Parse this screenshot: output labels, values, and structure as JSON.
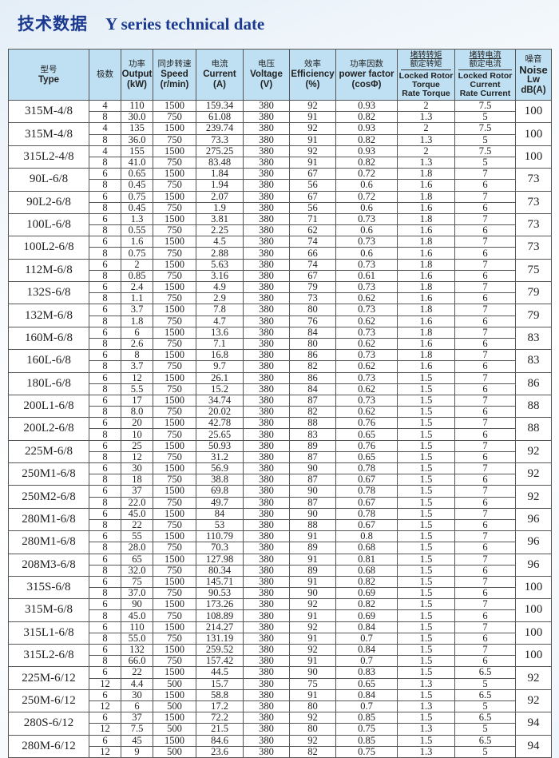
{
  "title": {
    "cn": "技术数据",
    "en": "Y series technical date"
  },
  "headers": {
    "type": {
      "cn": "型号",
      "en": "Type"
    },
    "poles": {
      "cn": "极数"
    },
    "output": {
      "cn": "功率",
      "en": "Output",
      "unit": "(kW)"
    },
    "speed": {
      "cn": "同步转速",
      "en": "Speed",
      "unit": "(r/min)"
    },
    "current": {
      "cn": "电流",
      "en": "Current",
      "unit": "(A)"
    },
    "voltage": {
      "cn": "电压",
      "en": "Voltage",
      "unit": "(V)"
    },
    "efficiency": {
      "cn": "效率",
      "en": "Efficiency",
      "unit": "(%)"
    },
    "pf": {
      "cn": "功率因数",
      "en": "power factor",
      "unit": "(cosΦ)"
    },
    "lrt": {
      "cn1": "堵转转矩",
      "cn2": "额定转矩",
      "en1": "Locked Rotor",
      "en2": "Torque",
      "en3": "Rate Torque"
    },
    "lrc": {
      "cn1": "堵转电流",
      "cn2": "额定电流",
      "en1": "Locked Rotor",
      "en2": "Current",
      "en3": "Rate Current"
    },
    "noise": {
      "cn": "噪音",
      "en1": "Noise",
      "en2": "Lw",
      "en3": "dB(A)"
    }
  },
  "groups": [
    {
      "type": "315M-4/8",
      "noise": "100",
      "rows": [
        [
          "4",
          "110",
          "1500",
          "159.34",
          "380",
          "92",
          "0.93",
          "2",
          "7.5"
        ],
        [
          "8",
          "30.0",
          "750",
          "61.08",
          "380",
          "91",
          "0.82",
          "1.3",
          "5"
        ]
      ]
    },
    {
      "type": "315M-4/8",
      "noise": "100",
      "rows": [
        [
          "4",
          "135",
          "1500",
          "239.74",
          "380",
          "92",
          "0.93",
          "2",
          "7.5"
        ],
        [
          "8",
          "36.0",
          "750",
          "73.3",
          "380",
          "91",
          "0.82",
          "1.3",
          "5"
        ]
      ]
    },
    {
      "type": "315L2-4/8",
      "noise": "100",
      "rows": [
        [
          "4",
          "155",
          "1500",
          "275.25",
          "380",
          "92",
          "0.93",
          "2",
          "7.5"
        ],
        [
          "8",
          "41.0",
          "750",
          "83.48",
          "380",
          "91",
          "0.82",
          "1.3",
          "5"
        ]
      ]
    },
    {
      "type": "90L-6/8",
      "noise": "73",
      "rows": [
        [
          "6",
          "0.65",
          "1500",
          "1.84",
          "380",
          "67",
          "0.72",
          "1.8",
          "7"
        ],
        [
          "8",
          "0.45",
          "750",
          "1.94",
          "380",
          "56",
          "0.6",
          "1.6",
          "6"
        ]
      ]
    },
    {
      "type": "90L2-6/8",
      "noise": "73",
      "rows": [
        [
          "6",
          "0.75",
          "1500",
          "2.07",
          "380",
          "67",
          "0.72",
          "1.8",
          "7"
        ],
        [
          "8",
          "0.45",
          "750",
          "1.9",
          "380",
          "56",
          "0.6",
          "1.6",
          "6"
        ]
      ]
    },
    {
      "type": "100L-6/8",
      "noise": "73",
      "rows": [
        [
          "6",
          "1.3",
          "1500",
          "3.81",
          "380",
          "71",
          "0.73",
          "1.8",
          "7"
        ],
        [
          "8",
          "0.55",
          "750",
          "2.25",
          "380",
          "62",
          "0.6",
          "1.6",
          "6"
        ]
      ]
    },
    {
      "type": "100L2-6/8",
      "noise": "73",
      "rows": [
        [
          "6",
          "1.6",
          "1500",
          "4.5",
          "380",
          "74",
          "0.73",
          "1.8",
          "7"
        ],
        [
          "8",
          "0.75",
          "750",
          "2.88",
          "380",
          "66",
          "0.6",
          "1.6",
          "6"
        ]
      ]
    },
    {
      "type": "112M-6/8",
      "noise": "75",
      "rows": [
        [
          "6",
          "2",
          "1500",
          "5.63",
          "380",
          "74",
          "0.73",
          "1.8",
          "7"
        ],
        [
          "8",
          "0.85",
          "750",
          "3.16",
          "380",
          "67",
          "0.61",
          "1.6",
          "6"
        ]
      ]
    },
    {
      "type": "132S-6/8",
      "noise": "79",
      "rows": [
        [
          "6",
          "2.4",
          "1500",
          "4.9",
          "380",
          "79",
          "0.73",
          "1.8",
          "7"
        ],
        [
          "8",
          "1.1",
          "750",
          "2.9",
          "380",
          "73",
          "0.62",
          "1.6",
          "6"
        ]
      ]
    },
    {
      "type": "132M-6/8",
      "noise": "79",
      "rows": [
        [
          "6",
          "3.7",
          "1500",
          "7.8",
          "380",
          "80",
          "0.73",
          "1.8",
          "7"
        ],
        [
          "8",
          "1.8",
          "750",
          "4.7",
          "380",
          "76",
          "0.62",
          "1.6",
          "6"
        ]
      ]
    },
    {
      "type": "160M-6/8",
      "noise": "83",
      "rows": [
        [
          "6",
          "6",
          "1500",
          "13.6",
          "380",
          "84",
          "0.73",
          "1.8",
          "7"
        ],
        [
          "8",
          "2.6",
          "750",
          "7.1",
          "380",
          "80",
          "0.62",
          "1.6",
          "6"
        ]
      ]
    },
    {
      "type": "160L-6/8",
      "noise": "83",
      "rows": [
        [
          "6",
          "8",
          "1500",
          "16.8",
          "380",
          "86",
          "0.73",
          "1.8",
          "7"
        ],
        [
          "8",
          "3.7",
          "750",
          "9.7",
          "380",
          "82",
          "0.62",
          "1.6",
          "6"
        ]
      ]
    },
    {
      "type": "180L-6/8",
      "noise": "86",
      "rows": [
        [
          "6",
          "12",
          "1500",
          "26.1",
          "380",
          "86",
          "0.73",
          "1.5",
          "7"
        ],
        [
          "8",
          "5.5",
          "750",
          "15.2",
          "380",
          "84",
          "0.62",
          "1.5",
          "6"
        ]
      ]
    },
    {
      "type": "200L1-6/8",
      "noise": "88",
      "rows": [
        [
          "6",
          "17",
          "1500",
          "34.74",
          "380",
          "87",
          "0.73",
          "1.5",
          "7"
        ],
        [
          "8",
          "8.0",
          "750",
          "20.02",
          "380",
          "82",
          "0.62",
          "1.5",
          "6"
        ]
      ]
    },
    {
      "type": "200L2-6/8",
      "noise": "88",
      "rows": [
        [
          "6",
          "20",
          "1500",
          "42.78",
          "380",
          "88",
          "0.76",
          "1.5",
          "7"
        ],
        [
          "8",
          "10",
          "750",
          "25.65",
          "380",
          "83",
          "0.65",
          "1.5",
          "6"
        ]
      ]
    },
    {
      "type": "225M-6/8",
      "noise": "92",
      "rows": [
        [
          "6",
          "25",
          "1500",
          "50.93",
          "380",
          "89",
          "0.76",
          "1.5",
          "7"
        ],
        [
          "8",
          "12",
          "750",
          "31.2",
          "380",
          "87",
          "0.65",
          "1.5",
          "6"
        ]
      ]
    },
    {
      "type": "250M1-6/8",
      "noise": "92",
      "rows": [
        [
          "6",
          "30",
          "1500",
          "56.9",
          "380",
          "90",
          "0.78",
          "1.5",
          "7"
        ],
        [
          "8",
          "18",
          "750",
          "38.8",
          "380",
          "87",
          "0.67",
          "1.5",
          "6"
        ]
      ]
    },
    {
      "type": "250M2-6/8",
      "noise": "92",
      "rows": [
        [
          "6",
          "37",
          "1500",
          "69.8",
          "380",
          "90",
          "0.78",
          "1.5",
          "7"
        ],
        [
          "8",
          "22.0",
          "750",
          "49.7",
          "380",
          "87",
          "0.67",
          "1.5",
          "6"
        ]
      ]
    },
    {
      "type": "280M1-6/8",
      "noise": "96",
      "rows": [
        [
          "6",
          "45.0",
          "1500",
          "84",
          "380",
          "90",
          "0.78",
          "1.5",
          "7"
        ],
        [
          "8",
          "22",
          "750",
          "53",
          "380",
          "88",
          "0.67",
          "1.5",
          "6"
        ]
      ]
    },
    {
      "type": "280M1-6/8",
      "noise": "96",
      "rows": [
        [
          "6",
          "55",
          "1500",
          "110.79",
          "380",
          "91",
          "0.8",
          "1.5",
          "7"
        ],
        [
          "8",
          "28.0",
          "750",
          "70.3",
          "380",
          "89",
          "0.68",
          "1.5",
          "6"
        ]
      ]
    },
    {
      "type": "208M3-6/8",
      "noise": "96",
      "rows": [
        [
          "6",
          "65",
          "1500",
          "127.98",
          "380",
          "91",
          "0.81",
          "1.5",
          "7"
        ],
        [
          "8",
          "32.0",
          "750",
          "80.34",
          "380",
          "89",
          "0.68",
          "1.5",
          "6"
        ]
      ]
    },
    {
      "type": "315S-6/8",
      "noise": "100",
      "rows": [
        [
          "6",
          "75",
          "1500",
          "145.71",
          "380",
          "91",
          "0.82",
          "1.5",
          "7"
        ],
        [
          "8",
          "37.0",
          "750",
          "90.53",
          "380",
          "90",
          "0.69",
          "1.5",
          "6"
        ]
      ]
    },
    {
      "type": "315M-6/8",
      "noise": "100",
      "rows": [
        [
          "6",
          "90",
          "1500",
          "173.26",
          "380",
          "92",
          "0.82",
          "1.5",
          "7"
        ],
        [
          "8",
          "45.0",
          "750",
          "108.89",
          "380",
          "91",
          "0.69",
          "1.5",
          "6"
        ]
      ]
    },
    {
      "type": "315L1-6/8",
      "noise": "100",
      "rows": [
        [
          "6",
          "110",
          "1500",
          "214.27",
          "380",
          "92",
          "0.84",
          "1.5",
          "7"
        ],
        [
          "8",
          "55.0",
          "750",
          "131.19",
          "380",
          "91",
          "0.7",
          "1.5",
          "6"
        ]
      ]
    },
    {
      "type": "315L2-6/8",
      "noise": "100",
      "rows": [
        [
          "6",
          "132",
          "1500",
          "259.52",
          "380",
          "92",
          "0.84",
          "1.5",
          "7"
        ],
        [
          "8",
          "66.0",
          "750",
          "157.42",
          "380",
          "91",
          "0.7",
          "1.5",
          "6"
        ]
      ]
    },
    {
      "type": "225M-6/12",
      "noise": "92",
      "rows": [
        [
          "6",
          "22",
          "1500",
          "44.5",
          "380",
          "90",
          "0.83",
          "1.5",
          "6.5"
        ],
        [
          "12",
          "4.4",
          "500",
          "15.7",
          "380",
          "75",
          "0.65",
          "1.3",
          "5"
        ]
      ]
    },
    {
      "type": "250M-6/12",
      "noise": "92",
      "rows": [
        [
          "6",
          "30",
          "1500",
          "58.8",
          "380",
          "91",
          "0.84",
          "1.5",
          "6.5"
        ],
        [
          "12",
          "6",
          "500",
          "17.2",
          "380",
          "80",
          "0.7",
          "1.3",
          "5"
        ]
      ]
    },
    {
      "type": "280S-6/12",
      "noise": "94",
      "rows": [
        [
          "6",
          "37",
          "1500",
          "72.2",
          "380",
          "92",
          "0.85",
          "1.5",
          "6.5"
        ],
        [
          "12",
          "7.5",
          "500",
          "21.5",
          "380",
          "80",
          "0.75",
          "1.3",
          "5"
        ]
      ]
    },
    {
      "type": "280M-6/12",
      "noise": "94",
      "rows": [
        [
          "6",
          "45",
          "1500",
          "84.6",
          "380",
          "92",
          "0.85",
          "1.5",
          "6.5"
        ],
        [
          "12",
          "9",
          "500",
          "23.6",
          "380",
          "82",
          "0.75",
          "1.3",
          "5"
        ]
      ]
    }
  ]
}
